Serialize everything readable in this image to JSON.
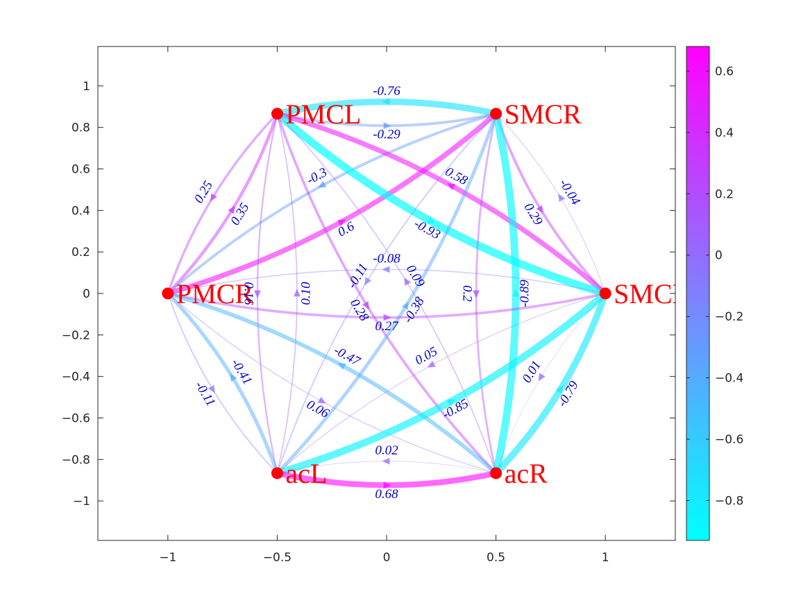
{
  "chart_data": {
    "type": "network",
    "title": "",
    "xlabel": "",
    "ylabel": "",
    "xlim": [
      -1.32,
      1.32
    ],
    "ylim": [
      -1.19,
      1.19
    ],
    "xticks": [
      "-1",
      "-0.5",
      "0",
      "0.5",
      "1"
    ],
    "xtick_values": [
      -1,
      -0.5,
      0,
      0.5,
      1
    ],
    "yticks": [
      "1",
      "0.8",
      "0.6",
      "0.4",
      "0.2",
      "0",
      "−0.2",
      "−0.4",
      "−0.6",
      "−0.8",
      "−1"
    ],
    "ytick_values": [
      1,
      0.8,
      0.6,
      0.4,
      0.2,
      0,
      -0.2,
      -0.4,
      -0.6,
      -0.8,
      -1
    ],
    "colorbar": {
      "min": -0.93,
      "max": 0.68,
      "ticks": [
        0.6,
        0.4,
        0.2,
        0,
        -0.2,
        -0.4,
        -0.6,
        -0.8
      ],
      "tick_labels": [
        "0.6",
        "0.4",
        "0.2",
        "0",
        "−0.2",
        "−0.4",
        "−0.6",
        "−0.8"
      ],
      "color_low": "#00ffff",
      "color_high": "#ff00ff"
    },
    "node_color": "#ff0000",
    "nodes": [
      {
        "id": "PMCL",
        "label": "PMCL",
        "x": -0.5,
        "y": 0.866
      },
      {
        "id": "SMCR",
        "label": "SMCR",
        "x": 0.5,
        "y": 0.866
      },
      {
        "id": "PMCR",
        "label": "PMCR",
        "x": -1,
        "y": 0
      },
      {
        "id": "SMCL",
        "label": "SMCL",
        "x": 1,
        "y": 0
      },
      {
        "id": "acL",
        "label": "acL",
        "x": -0.5,
        "y": -0.866
      },
      {
        "id": "acR",
        "label": "acR",
        "x": 0.5,
        "y": -0.866
      }
    ],
    "edges": [
      {
        "from": "SMCR",
        "to": "PMCL",
        "value": -0.76,
        "label": "-0.76"
      },
      {
        "from": "PMCL",
        "to": "SMCR",
        "value": -0.29,
        "label": "-0.29"
      },
      {
        "from": "PMCL",
        "to": "PMCR",
        "value": 0.25,
        "label": "0.25"
      },
      {
        "from": "PMCR",
        "to": "PMCL",
        "value": 0.35,
        "label": "0.35"
      },
      {
        "from": "SMCR",
        "to": "PMCR",
        "value": -0.3,
        "label": "-0.3"
      },
      {
        "from": "PMCR",
        "to": "SMCR",
        "value": 0.6,
        "label": "0.6"
      },
      {
        "from": "SMCL",
        "to": "PMCL",
        "value": 0.58,
        "label": "0.58"
      },
      {
        "from": "PMCL",
        "to": "SMCL",
        "value": -0.93,
        "label": "-0.93"
      },
      {
        "from": "SMCR",
        "to": "SMCL",
        "value": 0.29,
        "label": "0.29"
      },
      {
        "from": "SMCL",
        "to": "SMCR",
        "value": -0.04,
        "label": "-0.04"
      },
      {
        "from": "PMCL",
        "to": "acL",
        "value": 0.16,
        "label": "0.16"
      },
      {
        "from": "acL",
        "to": "PMCL",
        "value": 0.1,
        "label": "0.10"
      },
      {
        "from": "SMCR",
        "to": "acR",
        "value": 0.2,
        "label": "0.2"
      },
      {
        "from": "acR",
        "to": "SMCR",
        "value": -0.89,
        "label": "-0.89"
      },
      {
        "from": "PMCL",
        "to": "acR",
        "value": 0.28,
        "label": "0.28"
      },
      {
        "from": "acR",
        "to": "PMCL",
        "value": 0.09,
        "label": "0.09"
      },
      {
        "from": "SMCR",
        "to": "acL",
        "value": -0.11,
        "label": "-0.11"
      },
      {
        "from": "acL",
        "to": "SMCR",
        "value": -0.38,
        "label": "-0.38"
      },
      {
        "from": "PMCR",
        "to": "SMCL",
        "value": 0.27,
        "label": "0.27"
      },
      {
        "from": "SMCL",
        "to": "PMCR",
        "value": -0.08,
        "label": "-0.08"
      },
      {
        "from": "PMCR",
        "to": "acL",
        "value": -0.11,
        "label": "-0.11"
      },
      {
        "from": "acL",
        "to": "PMCR",
        "value": -0.41,
        "label": "-0.41"
      },
      {
        "from": "acR",
        "to": "PMCR",
        "value": -0.47,
        "label": "-0.47"
      },
      {
        "from": "PMCR",
        "to": "acR",
        "value": 0.06,
        "label": "0.06"
      },
      {
        "from": "SMCL",
        "to": "acL",
        "value": 0.05,
        "label": "0.05"
      },
      {
        "from": "acL",
        "to": "SMCL",
        "value": -0.85,
        "label": "-0.85"
      },
      {
        "from": "SMCL",
        "to": "acR",
        "value": 0.01,
        "label": "0.01"
      },
      {
        "from": "acR",
        "to": "SMCL",
        "value": -0.79,
        "label": "-0.79"
      },
      {
        "from": "acL",
        "to": "acR",
        "value": 0.68,
        "label": "0.68"
      },
      {
        "from": "acR",
        "to": "acL",
        "value": 0.02,
        "label": "0.02"
      }
    ]
  }
}
